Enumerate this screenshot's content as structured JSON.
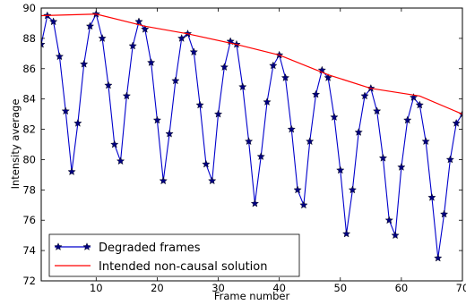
{
  "chart_data": {
    "type": "line",
    "title": "",
    "xlabel": "Frame number",
    "ylabel": "Intensity average",
    "xlim": [
      1,
      70
    ],
    "ylim": [
      72,
      90
    ],
    "xticks": [
      10,
      20,
      30,
      40,
      50,
      60,
      70
    ],
    "yticks": [
      72,
      74,
      76,
      78,
      80,
      82,
      84,
      86,
      88,
      90
    ],
    "grid": false,
    "legend_position": "lower-left",
    "series": [
      {
        "name": "Degraded frames",
        "color": "#0000cc",
        "marker": "star",
        "x": [
          1,
          2,
          3,
          4,
          5,
          6,
          7,
          8,
          9,
          10,
          11,
          12,
          13,
          14,
          15,
          16,
          17,
          18,
          19,
          20,
          21,
          22,
          23,
          24,
          25,
          26,
          27,
          28,
          29,
          30,
          31,
          32,
          33,
          34,
          35,
          36,
          37,
          38,
          39,
          40,
          41,
          42,
          43,
          44,
          45,
          46,
          47,
          48,
          49,
          50,
          51,
          52,
          53,
          54,
          55,
          56,
          57,
          58,
          59,
          60,
          61,
          62,
          63,
          64,
          65,
          66,
          67,
          68,
          69,
          70
        ],
        "y": [
          87.6,
          89.5,
          89.1,
          86.8,
          83.2,
          79.2,
          82.4,
          86.3,
          88.8,
          89.6,
          88.0,
          84.9,
          81.0,
          79.9,
          84.2,
          87.5,
          89.1,
          88.6,
          86.4,
          82.6,
          78.6,
          81.7,
          85.2,
          88.0,
          88.3,
          87.1,
          83.6,
          79.7,
          78.6,
          83.0,
          86.1,
          87.8,
          87.6,
          84.8,
          81.2,
          77.1,
          80.2,
          83.8,
          86.2,
          86.9,
          85.4,
          82.0,
          78.0,
          77.0,
          81.2,
          84.3,
          85.9,
          85.4,
          82.8,
          79.3,
          75.1,
          78.0,
          81.8,
          84.2,
          84.7,
          83.2,
          80.1,
          76.0,
          75.0,
          79.5,
          82.6,
          84.1,
          83.6,
          81.2,
          77.5,
          73.5,
          76.4,
          80.0,
          82.4,
          83.0
        ]
      },
      {
        "name": "Intended non-causal solution",
        "color": "#ff0000",
        "marker": "none",
        "x": [
          1,
          10,
          18,
          25,
          33,
          40,
          48,
          55,
          63,
          70
        ],
        "y": [
          89.5,
          89.6,
          88.8,
          88.3,
          87.6,
          86.9,
          85.6,
          84.7,
          84.2,
          83.0
        ]
      }
    ]
  }
}
